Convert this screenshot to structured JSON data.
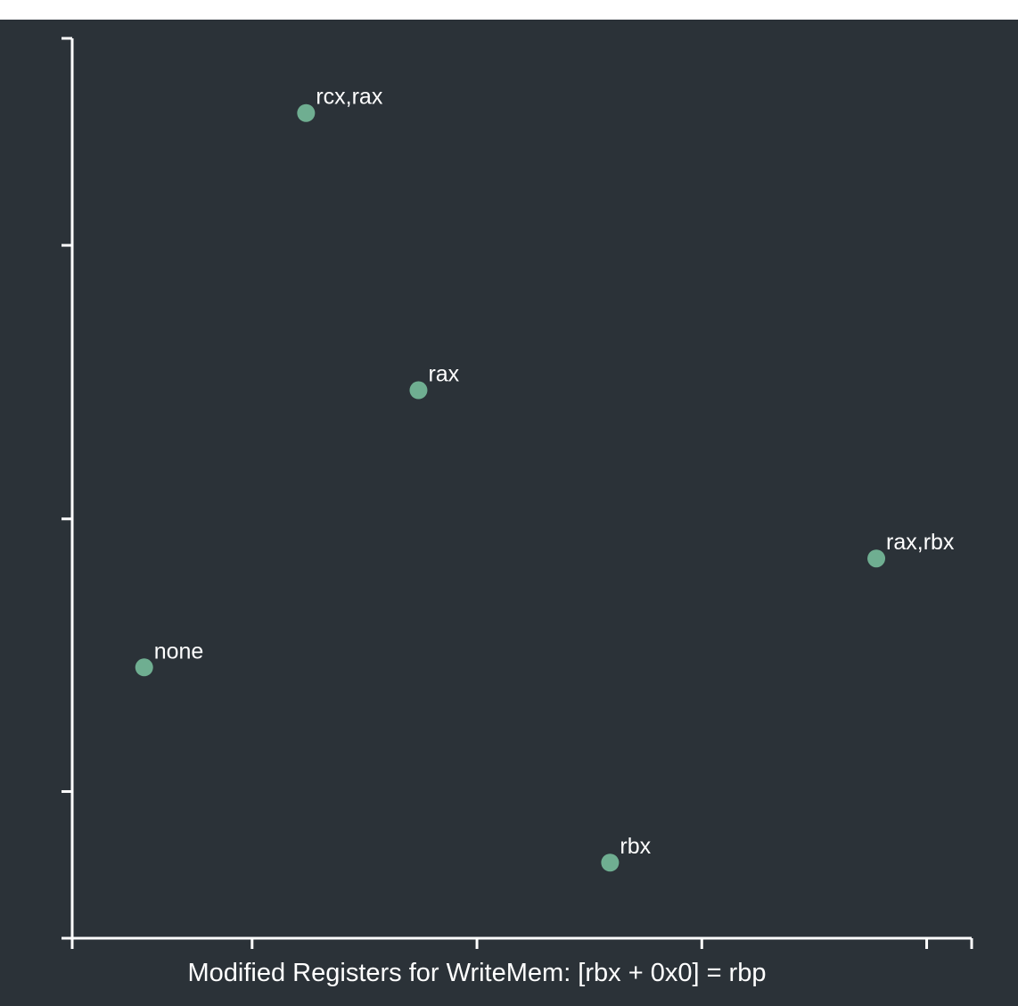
{
  "colors": {
    "background": "#2b3238",
    "axis": "#ffffff",
    "point": "#6fae91",
    "text": "#ffffff"
  },
  "chart_data": {
    "type": "scatter",
    "title": "",
    "xlabel": "Modified Registers for WriteMem: [rbx + 0x0] = rbp",
    "ylabel": "",
    "xlim": [
      0,
      1
    ],
    "ylim": [
      0,
      1
    ],
    "x_ticks": [
      0,
      0.2,
      0.45,
      0.7,
      0.95,
      1
    ],
    "y_ticks": [
      0,
      0.163,
      0.466,
      0.77,
      1
    ],
    "grid": false,
    "legend": "none",
    "points": [
      {
        "label": "rcx,rax",
        "x": 0.26,
        "y": 0.917
      },
      {
        "label": "rax",
        "x": 0.385,
        "y": 0.609
      },
      {
        "label": "rax,rbx",
        "x": 0.894,
        "y": 0.422
      },
      {
        "label": "none",
        "x": 0.08,
        "y": 0.301
      },
      {
        "label": "rbx",
        "x": 0.598,
        "y": 0.084
      }
    ]
  }
}
